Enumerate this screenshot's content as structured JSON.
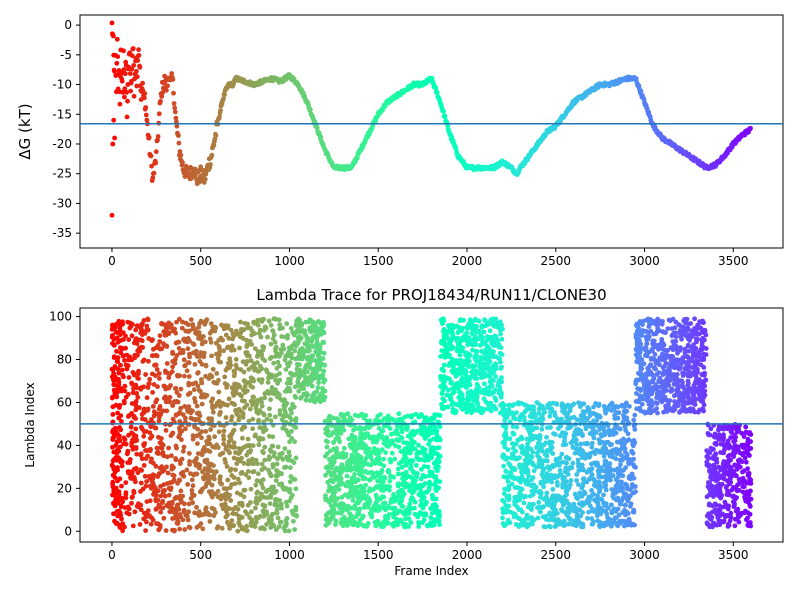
{
  "chart_data": [
    {
      "type": "scatter",
      "title": "",
      "xlabel": "",
      "ylabel": "ΔG (kT)",
      "xlim": [
        -180,
        3780
      ],
      "ylim": [
        -37.5,
        1.7
      ],
      "xticks": [
        0,
        500,
        1000,
        1500,
        2000,
        2500,
        3000,
        3500
      ],
      "yticks": [
        0,
        -5,
        -10,
        -15,
        -20,
        -25,
        -30,
        -35
      ],
      "hline": -16.6,
      "hline_color": "#1f77b4",
      "colormap": "rainbow (early frames red, late frames violet)",
      "grid": false,
      "series": [
        {
          "values": [
            [
              0,
              0
            ],
            [
              8,
              -3
            ],
            [
              12,
              -8
            ],
            [
              18,
              -6
            ],
            [
              25,
              -12
            ],
            [
              30,
              -2
            ],
            [
              35,
              -10
            ],
            [
              40,
              -7
            ],
            [
              45,
              -14
            ],
            [
              50,
              -5
            ],
            [
              55,
              -9
            ],
            [
              60,
              -11
            ],
            [
              65,
              -4
            ],
            [
              70,
              -13
            ],
            [
              75,
              -8
            ],
            [
              80,
              -6
            ],
            [
              85,
              -15
            ],
            [
              90,
              -10
            ],
            [
              95,
              -7
            ],
            [
              100,
              -4
            ],
            [
              105,
              -12
            ],
            [
              110,
              -9
            ],
            [
              115,
              -6
            ],
            [
              120,
              -3
            ],
            [
              125,
              -11
            ],
            [
              130,
              -8
            ],
            [
              135,
              -5
            ],
            [
              140,
              -10
            ],
            [
              145,
              -7
            ],
            [
              150,
              -3
            ],
            [
              155,
              -6
            ],
            [
              160,
              -9
            ],
            [
              165,
              -12
            ],
            [
              170,
              -10
            ],
            [
              175,
              -11
            ],
            [
              180,
              -13
            ],
            [
              185,
              -12
            ],
            [
              190,
              -14
            ],
            [
              200,
              -17
            ],
            [
              210,
              -20
            ],
            [
              220,
              -23
            ],
            [
              230,
              -26
            ],
            [
              240,
              -24
            ],
            [
              250,
              -22
            ],
            [
              260,
              -18
            ],
            [
              270,
              -14
            ],
            [
              280,
              -11
            ],
            [
              290,
              -10
            ],
            [
              300,
              -9
            ],
            [
              310,
              -11
            ],
            [
              320,
              -8
            ],
            [
              330,
              -10
            ],
            [
              340,
              -9
            ],
            [
              350,
              -12
            ],
            [
              360,
              -16
            ],
            [
              380,
              -21
            ],
            [
              400,
              -24
            ],
            [
              420,
              -25
            ],
            [
              440,
              -25
            ],
            [
              460,
              -24
            ],
            [
              480,
              -26
            ],
            [
              500,
              -25
            ],
            [
              520,
              -26
            ],
            [
              540,
              -24
            ],
            [
              560,
              -22
            ],
            [
              580,
              -19
            ],
            [
              600,
              -16
            ],
            [
              620,
              -13
            ],
            [
              640,
              -11
            ],
            [
              660,
              -10
            ],
            [
              680,
              -10
            ],
            [
              700,
              -9
            ],
            [
              750,
              -9.5
            ],
            [
              800,
              -10
            ],
            [
              850,
              -9.5
            ],
            [
              900,
              -9
            ],
            [
              950,
              -9.5
            ],
            [
              1000,
              -8.5
            ],
            [
              1050,
              -10
            ],
            [
              1100,
              -13
            ],
            [
              1150,
              -17
            ],
            [
              1200,
              -21
            ],
            [
              1250,
              -24
            ],
            [
              1300,
              -24
            ],
            [
              1350,
              -24
            ],
            [
              1400,
              -21
            ],
            [
              1450,
              -18
            ],
            [
              1500,
              -15
            ],
            [
              1550,
              -13
            ],
            [
              1600,
              -12
            ],
            [
              1650,
              -11
            ],
            [
              1700,
              -10
            ],
            [
              1750,
              -10
            ],
            [
              1800,
              -9
            ],
            [
              1850,
              -13
            ],
            [
              1900,
              -18
            ],
            [
              1950,
              -22
            ],
            [
              2000,
              -24
            ],
            [
              2050,
              -24
            ],
            [
              2100,
              -24
            ],
            [
              2150,
              -24
            ],
            [
              2200,
              -23
            ],
            [
              2250,
              -24
            ],
            [
              2280,
              -25
            ],
            [
              2300,
              -24
            ],
            [
              2350,
              -22
            ],
            [
              2400,
              -20
            ],
            [
              2450,
              -18
            ],
            [
              2500,
              -17
            ],
            [
              2550,
              -15
            ],
            [
              2600,
              -13
            ],
            [
              2650,
              -12
            ],
            [
              2700,
              -11
            ],
            [
              2750,
              -10
            ],
            [
              2800,
              -10
            ],
            [
              2850,
              -9.5
            ],
            [
              2900,
              -9
            ],
            [
              2950,
              -9
            ],
            [
              3000,
              -13
            ],
            [
              3050,
              -17
            ],
            [
              3100,
              -19
            ],
            [
              3150,
              -20
            ],
            [
              3200,
              -21
            ],
            [
              3250,
              -22
            ],
            [
              3300,
              -23
            ],
            [
              3350,
              -24
            ],
            [
              3400,
              -23.5
            ],
            [
              3450,
              -22
            ],
            [
              3500,
              -20
            ],
            [
              3550,
              -18.5
            ],
            [
              3600,
              -17.5
            ],
            [
              0,
              -32
            ],
            [
              5,
              -20
            ],
            [
              10,
              -16
            ],
            [
              15,
              -19
            ]
          ]
        }
      ]
    },
    {
      "type": "scatter",
      "title": "Lambda Trace for PROJ18434/RUN11/CLONE30",
      "xlabel": "Frame Index",
      "ylabel": "Lambda Index",
      "xlim": [
        -180,
        3780
      ],
      "ylim": [
        -5,
        104
      ],
      "xticks": [
        0,
        500,
        1000,
        1500,
        2000,
        2500,
        3000,
        3500
      ],
      "yticks": [
        0,
        20,
        40,
        60,
        80,
        100
      ],
      "hline": 50,
      "hline_color": "#1f77b4",
      "colormap": "rainbow (early frames red, late frames violet)",
      "grid": false,
      "density_segments": [
        {
          "x": [
            0,
            1040
          ],
          "y": [
            0,
            99
          ]
        },
        {
          "x": [
            1040,
            1200
          ],
          "y": [
            60,
            99
          ]
        },
        {
          "x": [
            1200,
            1850
          ],
          "y": [
            2,
            55
          ]
        },
        {
          "x": [
            1850,
            2200
          ],
          "y": [
            55,
            99
          ]
        },
        {
          "x": [
            2200,
            2950
          ],
          "y": [
            2,
            60
          ]
        },
        {
          "x": [
            2950,
            3350
          ],
          "y": [
            55,
            99
          ]
        },
        {
          "x": [
            3350,
            3600
          ],
          "y": [
            2,
            50
          ]
        }
      ]
    }
  ]
}
